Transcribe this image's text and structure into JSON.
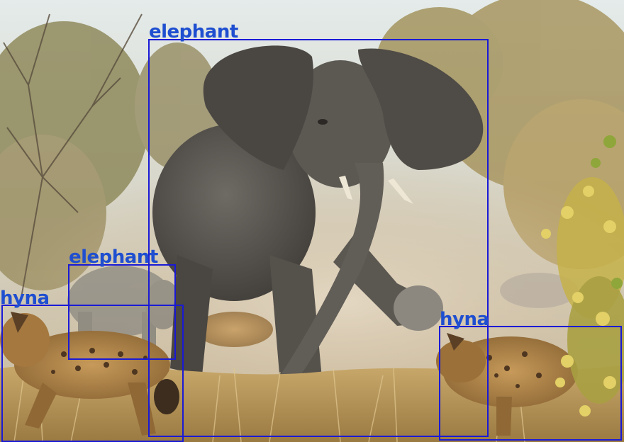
{
  "scene": {
    "description_icon": "safari-photo-icon"
  },
  "colors": {
    "box": "#1a1ad6",
    "label": "#1f4fd0"
  },
  "detections": [
    {
      "label": "elephant"
    },
    {
      "label": "elephant"
    },
    {
      "label": "hyna"
    },
    {
      "label": "hyna"
    }
  ]
}
